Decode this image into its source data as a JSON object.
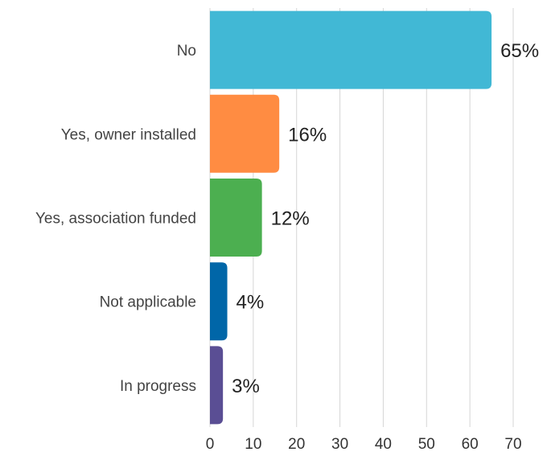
{
  "chart_data": {
    "type": "bar",
    "orientation": "horizontal",
    "title": "",
    "xlabel": "",
    "ylabel": "",
    "categories": [
      "No",
      "Yes, owner installed",
      "Yes, association funded",
      "Not applicable",
      "In progress"
    ],
    "values": [
      65,
      16,
      12,
      4,
      3
    ],
    "value_labels": [
      "65%",
      "16%",
      "12%",
      "4%",
      "3%"
    ],
    "colors": [
      "#41b8d5",
      "#ff8c42",
      "#4caf50",
      "#0066a8",
      "#5a4e94"
    ],
    "xlim": [
      0,
      70
    ],
    "xticks": [
      "0",
      "10",
      "20",
      "30",
      "40",
      "50",
      "60",
      "70"
    ],
    "grid": true,
    "legend": "none"
  }
}
